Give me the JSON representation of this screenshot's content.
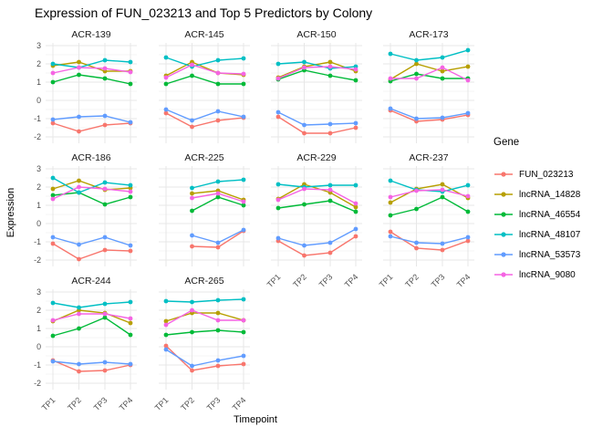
{
  "title": "Expression of FUN_023213 and Top 5 Predictors by Colony",
  "axes": {
    "x_title": "Timepoint",
    "y_title": "Expression",
    "x_ticks": [
      "TP1",
      "TP2",
      "TP3",
      "TP4"
    ],
    "y_ticks": [
      3,
      2,
      1,
      0,
      -1,
      -2
    ]
  },
  "legend": {
    "title": "Gene"
  },
  "chart_data": {
    "type": "line",
    "x": [
      "TP1",
      "TP2",
      "TP3",
      "TP4"
    ],
    "ylim": [
      -2.35,
      3.15
    ],
    "y_major_gridlines": [
      3,
      2,
      1,
      0,
      -1,
      -2
    ],
    "y_minor_gridlines": [
      2.5,
      1.5,
      0.5,
      -0.5,
      -1.5
    ],
    "facet_titles": [
      "ACR-139",
      "ACR-145",
      "ACR-150",
      "ACR-173",
      "ACR-186",
      "ACR-225",
      "ACR-229",
      "ACR-237",
      "ACR-244",
      "ACR-265"
    ],
    "series": [
      {
        "name": "FUN_023213",
        "color": "#F8766D"
      },
      {
        "name": "lncRNA_14828",
        "color": "#B79F00"
      },
      {
        "name": "lncRNA_46554",
        "color": "#00BA38"
      },
      {
        "name": "lncRNA_48107",
        "color": "#00BFC4"
      },
      {
        "name": "lncRNA_53573",
        "color": "#619CFF"
      },
      {
        "name": "lncRNA_9080",
        "color": "#F564E3"
      }
    ],
    "facets": [
      {
        "name": "ACR-139",
        "values": {
          "FUN_023213": [
            -1.25,
            -1.7,
            -1.35,
            -1.25
          ],
          "lncRNA_14828": [
            1.9,
            2.1,
            1.6,
            1.6
          ],
          "lncRNA_46554": [
            1.0,
            1.4,
            1.2,
            0.9
          ],
          "lncRNA_48107": [
            2.0,
            1.8,
            2.2,
            2.1
          ],
          "lncRNA_53573": [
            -1.05,
            -0.9,
            -0.85,
            -1.2
          ],
          "lncRNA_9080": [
            1.5,
            1.8,
            1.75,
            1.55
          ]
        }
      },
      {
        "name": "ACR-145",
        "values": {
          "FUN_023213": [
            -0.7,
            -1.45,
            -1.1,
            -0.95
          ],
          "lncRNA_14828": [
            1.35,
            2.1,
            1.5,
            1.4
          ],
          "lncRNA_46554": [
            0.9,
            1.35,
            0.9,
            0.9
          ],
          "lncRNA_48107": [
            2.35,
            1.85,
            2.2,
            2.3
          ],
          "lncRNA_53573": [
            -0.5,
            -1.1,
            -0.6,
            -0.9
          ],
          "lncRNA_9080": [
            1.25,
            1.95,
            1.5,
            1.45
          ]
        }
      },
      {
        "name": "ACR-150",
        "values": {
          "FUN_023213": [
            -0.9,
            -1.8,
            -1.8,
            -1.5
          ],
          "lncRNA_14828": [
            1.25,
            1.85,
            2.1,
            1.6
          ],
          "lncRNA_46554": [
            1.15,
            1.65,
            1.35,
            1.1
          ],
          "lncRNA_48107": [
            2.0,
            2.1,
            1.75,
            1.85
          ],
          "lncRNA_53573": [
            -0.65,
            -1.35,
            -1.3,
            -1.25
          ],
          "lncRNA_9080": [
            1.2,
            1.8,
            1.85,
            1.7
          ]
        }
      },
      {
        "name": "ACR-173",
        "values": {
          "FUN_023213": [
            -0.55,
            -1.15,
            -1.05,
            -0.8
          ],
          "lncRNA_14828": [
            1.15,
            2.0,
            1.6,
            1.85
          ],
          "lncRNA_46554": [
            1.05,
            1.45,
            1.2,
            1.2
          ],
          "lncRNA_48107": [
            2.55,
            2.2,
            2.35,
            2.75
          ],
          "lncRNA_53573": [
            -0.45,
            -1.0,
            -0.95,
            -0.7
          ],
          "lncRNA_9080": [
            1.2,
            1.2,
            1.8,
            1.1
          ]
        }
      },
      {
        "name": "ACR-186",
        "values": {
          "FUN_023213": [
            -1.1,
            -1.95,
            -1.45,
            -1.5
          ],
          "lncRNA_14828": [
            1.9,
            2.35,
            1.85,
            1.95
          ],
          "lncRNA_46554": [
            1.55,
            1.7,
            1.05,
            1.45
          ],
          "lncRNA_48107": [
            2.5,
            1.7,
            2.25,
            2.1
          ],
          "lncRNA_53573": [
            -0.75,
            -1.15,
            -0.75,
            -1.2
          ],
          "lncRNA_9080": [
            1.35,
            2.0,
            1.9,
            1.75
          ]
        }
      },
      {
        "name": "ACR-225",
        "values": {
          "FUN_023213": [
            null,
            -1.25,
            -1.3,
            -0.4
          ],
          "lncRNA_14828": [
            null,
            1.65,
            1.8,
            1.3
          ],
          "lncRNA_46554": [
            null,
            0.7,
            1.45,
            1.0
          ],
          "lncRNA_48107": [
            null,
            1.95,
            2.3,
            2.4
          ],
          "lncRNA_53573": [
            null,
            -0.65,
            -1.05,
            -0.35
          ],
          "lncRNA_9080": [
            null,
            1.4,
            1.65,
            1.2
          ]
        }
      },
      {
        "name": "ACR-229",
        "values": {
          "FUN_023213": [
            -0.95,
            -1.75,
            -1.6,
            -0.7
          ],
          "lncRNA_14828": [
            1.35,
            2.15,
            1.7,
            0.9
          ],
          "lncRNA_46554": [
            0.85,
            1.05,
            1.25,
            0.65
          ],
          "lncRNA_48107": [
            2.15,
            2.0,
            2.1,
            2.1
          ],
          "lncRNA_53573": [
            -0.8,
            -1.2,
            -1.05,
            -0.3
          ],
          "lncRNA_9080": [
            1.3,
            1.9,
            1.85,
            1.1
          ]
        }
      },
      {
        "name": "ACR-237",
        "values": {
          "FUN_023213": [
            -0.45,
            -1.35,
            -1.45,
            -0.95
          ],
          "lncRNA_14828": [
            1.15,
            1.9,
            2.15,
            1.4
          ],
          "lncRNA_46554": [
            0.45,
            0.8,
            1.45,
            0.65
          ],
          "lncRNA_48107": [
            2.35,
            1.85,
            1.75,
            2.1
          ],
          "lncRNA_53573": [
            -0.7,
            -1.05,
            -1.1,
            -0.75
          ],
          "lncRNA_9080": [
            1.45,
            1.8,
            1.85,
            1.5
          ]
        }
      },
      {
        "name": "ACR-244",
        "values": {
          "FUN_023213": [
            -0.75,
            -1.35,
            -1.3,
            -1.0
          ],
          "lncRNA_14828": [
            1.4,
            2.0,
            1.85,
            1.3
          ],
          "lncRNA_46554": [
            0.6,
            1.0,
            1.6,
            0.65
          ],
          "lncRNA_48107": [
            2.4,
            2.15,
            2.35,
            2.45
          ],
          "lncRNA_53573": [
            -0.8,
            -0.95,
            -0.85,
            -0.95
          ],
          "lncRNA_9080": [
            1.45,
            1.8,
            1.8,
            1.55
          ]
        }
      },
      {
        "name": "ACR-265",
        "values": {
          "FUN_023213": [
            0.05,
            -1.3,
            -1.05,
            -0.95
          ],
          "lncRNA_14828": [
            1.4,
            1.85,
            1.85,
            1.45
          ],
          "lncRNA_46554": [
            0.65,
            0.8,
            0.9,
            0.8
          ],
          "lncRNA_48107": [
            2.5,
            2.45,
            2.55,
            2.6
          ],
          "lncRNA_53573": [
            -0.15,
            -1.05,
            -0.75,
            -0.5
          ],
          "lncRNA_9080": [
            1.2,
            2.0,
            1.45,
            1.45
          ]
        }
      }
    ]
  }
}
